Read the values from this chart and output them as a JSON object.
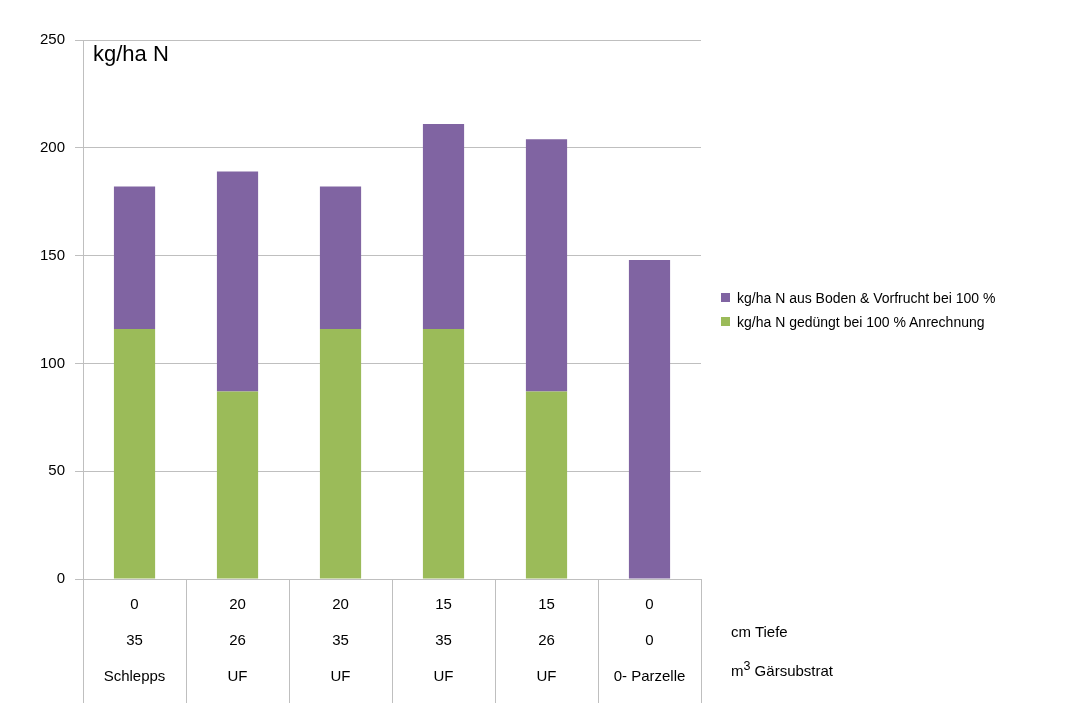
{
  "chart_data": {
    "type": "bar",
    "stacked": true,
    "ylabel": "kg/ha N",
    "categories": [
      "0\n35\nSchlepps",
      "20\n26\nUF",
      "20\n35\nUF",
      "15\n35\nUF",
      "15\n26\nUF",
      "0\n0\n0- Parzelle"
    ],
    "series": [
      {
        "name": "kg/ha N gedüngt bei 100 % Anrechnung",
        "color": "#9bbb59",
        "values": [
          116,
          87,
          116,
          116,
          87,
          0
        ]
      },
      {
        "name": "kg/ha N aus Boden & Vorfrucht bei 100 %",
        "color": "#8064a2",
        "values": [
          66,
          102,
          66,
          95,
          117,
          148
        ]
      }
    ],
    "ylim": [
      0,
      250
    ],
    "yticks": [
      0,
      50,
      100,
      150,
      200,
      250
    ],
    "grid": "y",
    "legend": "right",
    "annotations": [
      "cm Tiefe",
      "m$^{3}$ Gärsubstrat"
    ]
  }
}
